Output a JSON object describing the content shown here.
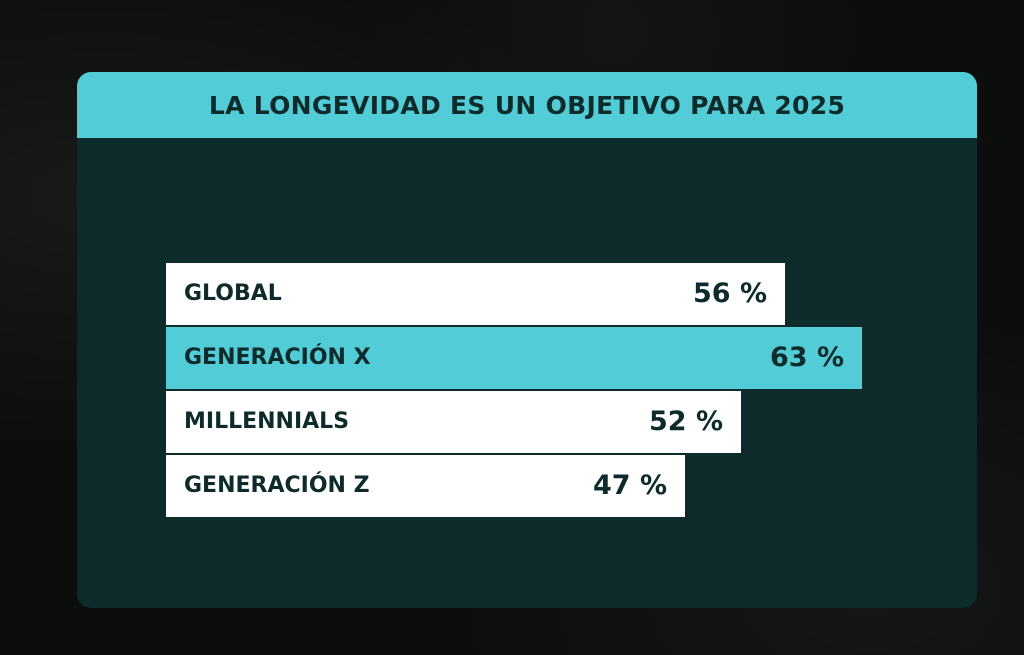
{
  "colors": {
    "card_background": "#0e2b2b",
    "header_background": "#52ccd6",
    "bar_default": "#ffffff",
    "bar_highlight": "#52ccd6",
    "text_dark": "#0e2b2b"
  },
  "chart_data": {
    "type": "bar",
    "orientation": "horizontal",
    "title": "LA LONGEVIDAD ES UN OBJETIVO PARA 2025",
    "categories": [
      "GLOBAL",
      "GENERACIÓN X",
      "MILLENNIALS",
      "GENERACIÓN Z"
    ],
    "values": [
      56,
      63,
      52,
      47
    ],
    "value_labels": [
      "56 %",
      "63 %",
      "52 %",
      "47 %"
    ],
    "highlighted_category": "GENERACIÓN X",
    "unit": "%",
    "grid": false,
    "legend": "none"
  }
}
